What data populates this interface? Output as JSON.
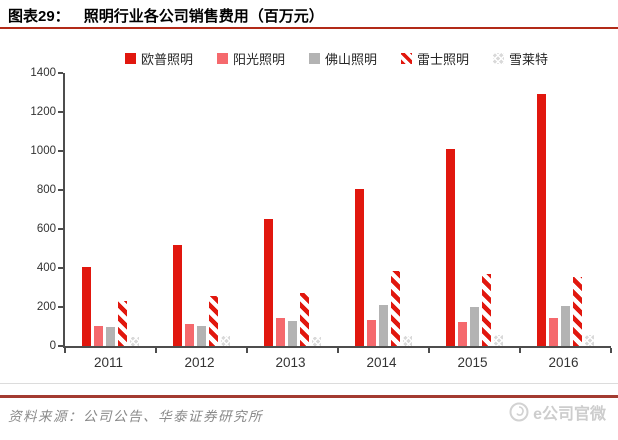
{
  "title": {
    "prefix": "图表29：",
    "text": "照明行业各公司销售费用（百万元）"
  },
  "footer": {
    "source": "资料来源：公司公告、华泰证券研究所",
    "watermark": "e公司官微"
  },
  "colors": {
    "accent_red": "#E1170E",
    "pink": "#F5696D",
    "gray": "#B3B3B3",
    "light_gray": "#D9D9D9",
    "title_rule": "#B22A18",
    "footer_rule": "#A33B31",
    "axis": "#4d4d4d"
  },
  "chart_data": {
    "type": "bar",
    "title": "照明行业各公司销售费用（百万元）",
    "xlabel": "",
    "ylabel": "",
    "categories": [
      "2011",
      "2012",
      "2013",
      "2014",
      "2015",
      "2016"
    ],
    "series": [
      {
        "name": "欧普照明",
        "pattern": "solid",
        "color": "#E1170E",
        "values": [
          405,
          520,
          650,
          805,
          1010,
          1290
        ]
      },
      {
        "name": "阳光照明",
        "pattern": "solid",
        "color": "#F5696D",
        "values": [
          105,
          115,
          145,
          135,
          125,
          145
        ]
      },
      {
        "name": "佛山照明",
        "pattern": "solid",
        "color": "#B3B3B3",
        "values": [
          100,
          105,
          130,
          210,
          200,
          205
        ]
      },
      {
        "name": "雷士照明",
        "pattern": "diagonal-stripes",
        "color": "#E1170E",
        "values": [
          230,
          255,
          270,
          385,
          370,
          355
        ]
      },
      {
        "name": "雪莱特",
        "pattern": "crosshatch",
        "color": "#D9D9D9",
        "values": [
          45,
          50,
          45,
          50,
          55,
          55
        ]
      }
    ],
    "ylim": [
      0,
      1400
    ],
    "ytick_step": 200,
    "grid": false,
    "legend_position": "top"
  }
}
